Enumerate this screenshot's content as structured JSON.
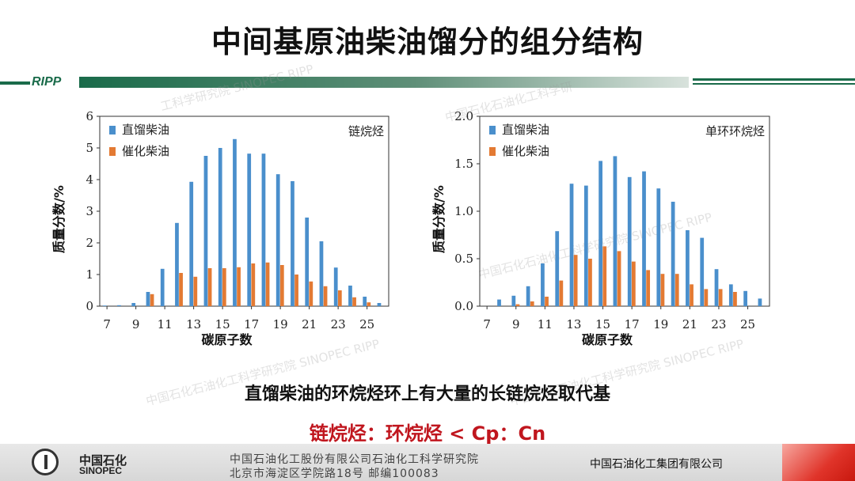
{
  "title": "中间基原油柴油馏分的组分结构",
  "header": {
    "logo": "RIPP"
  },
  "watermarks": [
    "工科学研究院 SINOPEC RIPP",
    "中国石化石油化工科学研",
    "中国石化石油化工科学研究院 SINOPEC RIPP",
    "中国石化石油化工科学研究院 SINOPEC RIPP",
    "中国石化石油化工科学研究院 SINOPEC RIPP"
  ],
  "chart_data": [
    {
      "type": "bar",
      "annotation": "链烷烃",
      "xlabel": "碳原子数",
      "ylabel": "质量分数/%",
      "ylim": [
        0,
        6
      ],
      "yticks": [
        "0",
        "1",
        "2",
        "3",
        "4",
        "5",
        "6"
      ],
      "xticks": [
        "7",
        "9",
        "11",
        "13",
        "15",
        "17",
        "19",
        "21",
        "23",
        "25"
      ],
      "categories": [
        7,
        8,
        9,
        10,
        11,
        12,
        13,
        14,
        15,
        16,
        17,
        18,
        19,
        20,
        21,
        22,
        23,
        24,
        25,
        26
      ],
      "legend": "top-left",
      "series": [
        {
          "name": "直馏柴油",
          "color": "#4a8fcc",
          "values": [
            0.02,
            0.03,
            0.1,
            0.45,
            1.18,
            2.63,
            3.93,
            4.75,
            5.0,
            5.28,
            4.82,
            4.82,
            4.17,
            3.95,
            2.8,
            2.05,
            1.22,
            0.65,
            0.3,
            0.1
          ]
        },
        {
          "name": "催化柴油",
          "color": "#e37a33",
          "values": [
            0,
            0,
            0,
            0.38,
            0,
            1.05,
            0.93,
            1.2,
            1.2,
            1.23,
            1.35,
            1.38,
            1.3,
            1.0,
            0.78,
            0.63,
            0.5,
            0.28,
            0.12,
            0
          ]
        }
      ]
    },
    {
      "type": "bar",
      "annotation": "单环环烷烃",
      "xlabel": "碳原子数",
      "ylabel": "质量分数/%",
      "ylim": [
        0,
        2.0
      ],
      "yticks": [
        "0.0",
        "0.5",
        "1.0",
        "1.5",
        "2.0"
      ],
      "xticks": [
        "7",
        "9",
        "11",
        "13",
        "15",
        "17",
        "19",
        "21",
        "23",
        "25"
      ],
      "categories": [
        7,
        8,
        9,
        10,
        11,
        12,
        13,
        14,
        15,
        16,
        17,
        18,
        19,
        20,
        21,
        22,
        23,
        24,
        25,
        26
      ],
      "legend": "top-left",
      "series": [
        {
          "name": "直馏柴油",
          "color": "#4a8fcc",
          "values": [
            0,
            0.07,
            0.11,
            0.21,
            0.45,
            0.79,
            1.29,
            1.27,
            1.53,
            1.58,
            1.36,
            1.42,
            1.24,
            1.1,
            0.8,
            0.72,
            0.39,
            0.23,
            0.16,
            0.08
          ]
        },
        {
          "name": "催化柴油",
          "color": "#e37a33",
          "values": [
            0,
            0,
            0.02,
            0.05,
            0.1,
            0.27,
            0.54,
            0.5,
            0.63,
            0.58,
            0.47,
            0.38,
            0.34,
            0.34,
            0.23,
            0.18,
            0.18,
            0.15,
            0,
            0
          ]
        }
      ]
    }
  ],
  "captions": {
    "line1": "直馏柴油的环烷烃环上有大量的长链烷烃取代基",
    "line2": "链烷烃：环烷烃 < Cp：Cn"
  },
  "footer": {
    "logo_cn": "中国石化",
    "logo_en": "SINOPEC",
    "line1": "中国石油化工股份有限公司石油化工科学研究院",
    "line2": "北京市海淀区学院路18号   邮编100083",
    "right": "中国石油化工集团有限公司"
  }
}
